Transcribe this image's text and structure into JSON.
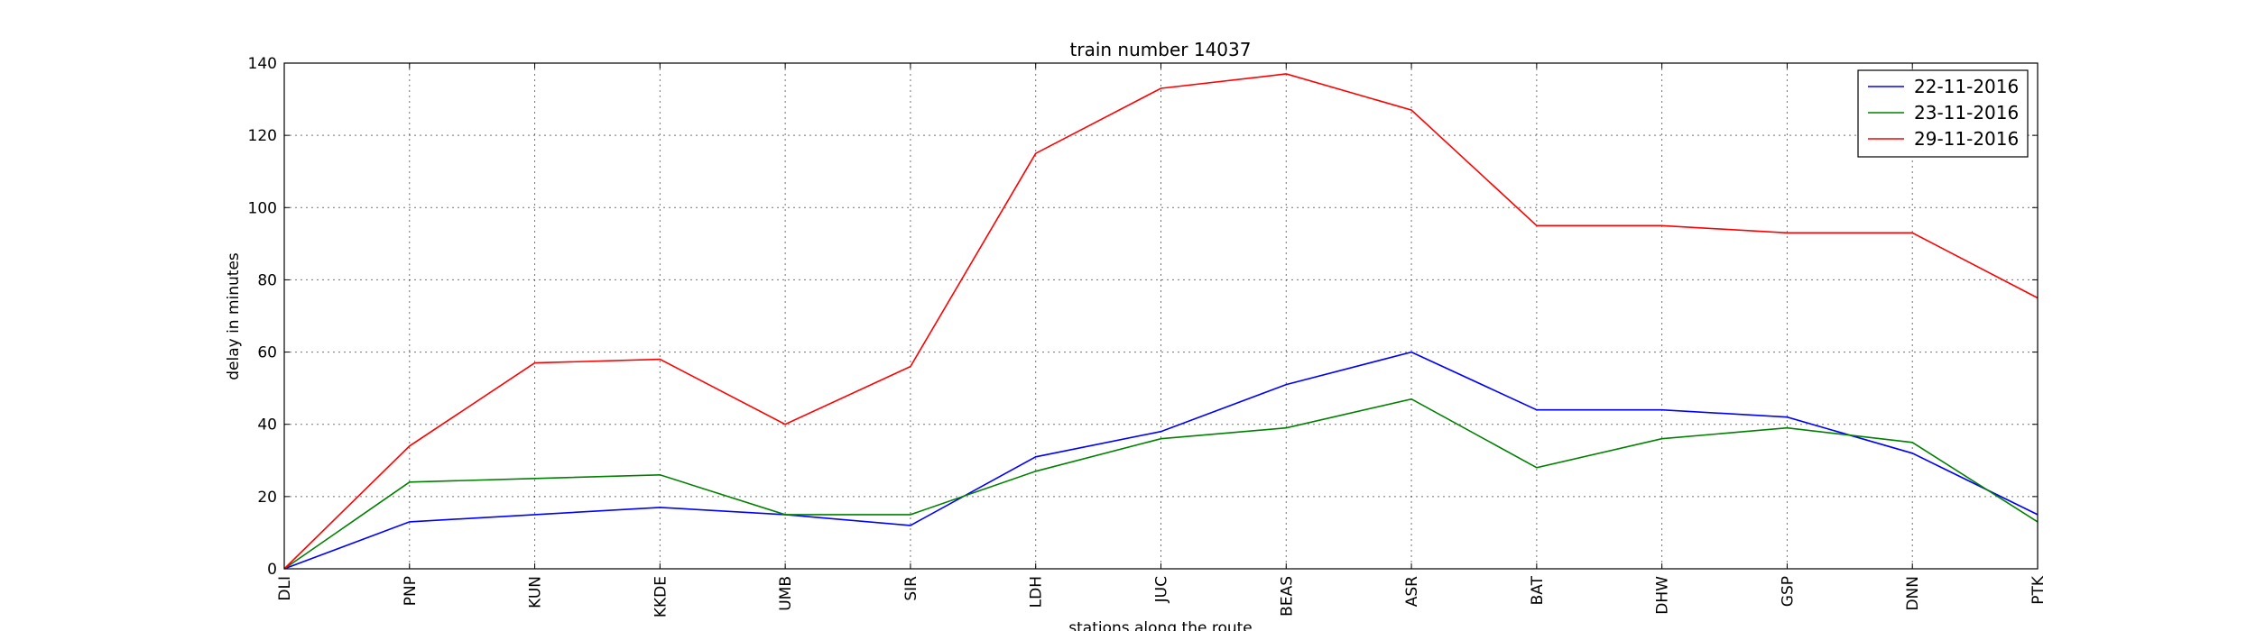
{
  "chart_data": {
    "type": "line",
    "title": "train number 14037",
    "xlabel": "stations along the route",
    "ylabel": "delay in minutes",
    "categories": [
      "DLI",
      "PNP",
      "KUN",
      "KKDE",
      "UMB",
      "SIR",
      "LDH",
      "JUC",
      "BEAS",
      "ASR",
      "BAT",
      "DHW",
      "GSP",
      "DNN",
      "PTK"
    ],
    "ylim": [
      0,
      140
    ],
    "yticks": [
      0,
      20,
      40,
      60,
      80,
      100,
      120,
      140
    ],
    "grid": true,
    "legend_position": "top-right",
    "series": [
      {
        "name": "22-11-2016",
        "color": "#0000ff",
        "values": [
          0,
          13,
          15,
          17,
          15,
          12,
          31,
          38,
          51,
          60,
          44,
          44,
          42,
          32,
          15
        ]
      },
      {
        "name": "23-11-2016",
        "color": "#008000",
        "values": [
          0,
          24,
          25,
          26,
          15,
          15,
          27,
          36,
          39,
          47,
          28,
          36,
          39,
          35,
          13
        ]
      },
      {
        "name": "29-11-2016",
        "color": "#ff0000",
        "values": [
          0,
          34,
          57,
          58,
          40,
          56,
          115,
          133,
          137,
          127,
          95,
          95,
          93,
          93,
          75
        ]
      }
    ]
  }
}
